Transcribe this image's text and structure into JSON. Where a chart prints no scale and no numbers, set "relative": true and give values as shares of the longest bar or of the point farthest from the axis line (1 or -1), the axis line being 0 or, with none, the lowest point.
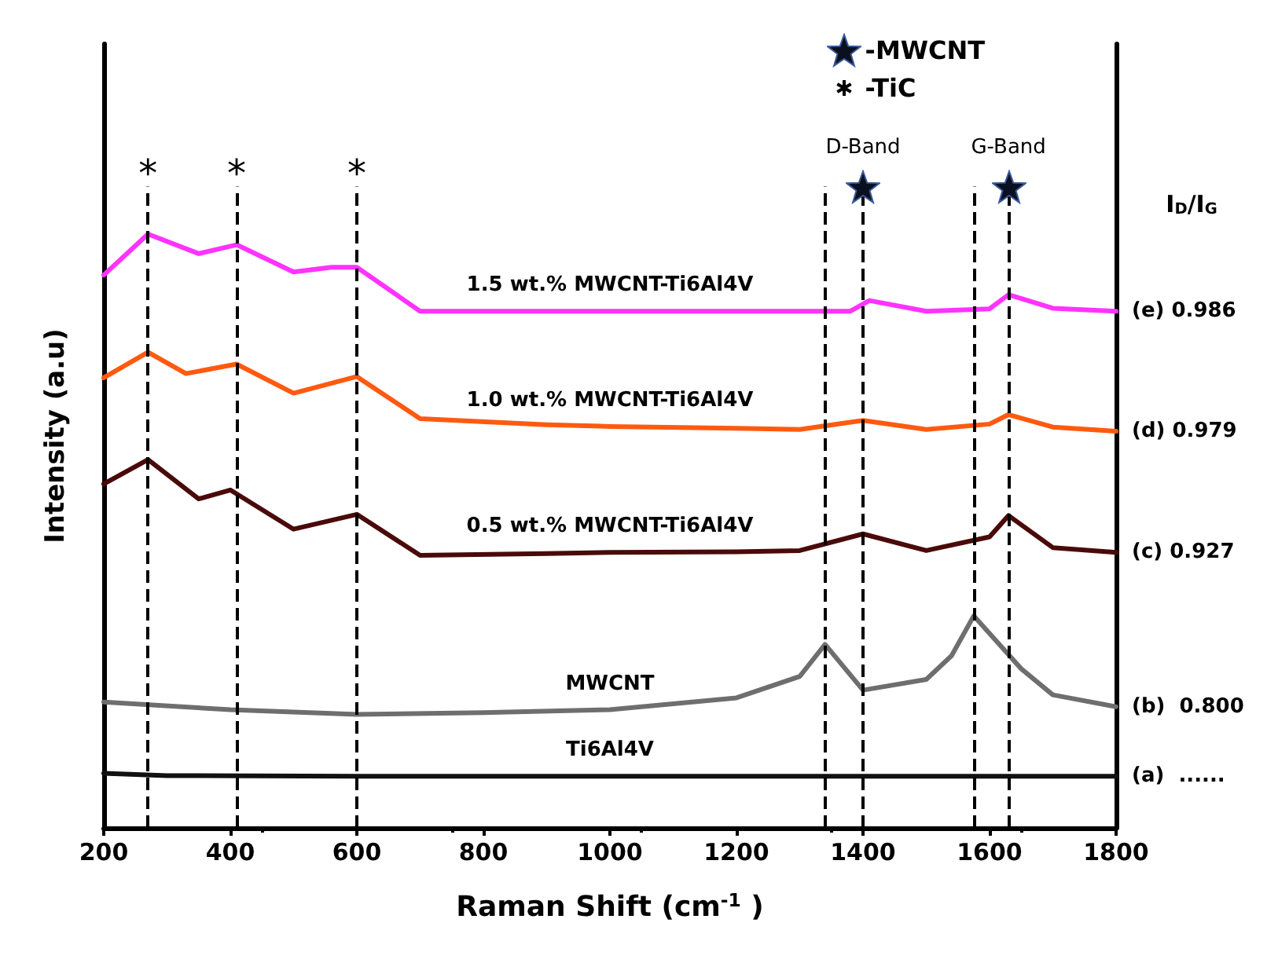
{
  "chart_data": {
    "type": "line",
    "relative": true,
    "xlabel": "Raman Shift (cm$^{-1}$ )",
    "ylabel": "Intensity (a.u)",
    "xlim": [
      200,
      1800
    ],
    "xticks": [
      200,
      400,
      600,
      800,
      1000,
      1200,
      1400,
      1600,
      1800
    ],
    "grid": false,
    "legend": false,
    "marker": "none",
    "line_style": "solid",
    "series": [
      {
        "name": "1.5 wt.% MWCNT-Ti6Al4V",
        "color": "#ff33ff",
        "x": [
          200,
          270,
          350,
          410,
          500,
          560,
          600,
          700,
          900,
          1000,
          1200,
          1380,
          1410,
          1500,
          1600,
          1630,
          1700,
          1800
        ],
        "values": [
          0.931,
          1.0,
          0.967,
          0.982,
          0.936,
          0.944,
          0.944,
          0.87,
          0.87,
          0.87,
          0.87,
          0.87,
          0.888,
          0.87,
          0.874,
          0.898,
          0.875,
          0.87
        ]
      },
      {
        "name": "1.0 wt.% MWCNT-Ti6Al4V",
        "color": "#ff5a10",
        "x": [
          200,
          270,
          330,
          410,
          500,
          600,
          700,
          900,
          1000,
          1200,
          1300,
          1400,
          1500,
          1600,
          1630,
          1700,
          1800
        ],
        "values": [
          0.758,
          0.801,
          0.765,
          0.781,
          0.732,
          0.76,
          0.689,
          0.679,
          0.676,
          0.673,
          0.671,
          0.686,
          0.671,
          0.68,
          0.696,
          0.675,
          0.668
        ]
      },
      {
        "name": "0.5 wt.% MWCNT-Ti6Al4V",
        "color": "#4a0a0a",
        "x": [
          200,
          270,
          350,
          400,
          500,
          600,
          700,
          900,
          1000,
          1200,
          1300,
          1400,
          1500,
          1600,
          1630,
          1700,
          1800
        ],
        "values": [
          0.579,
          0.62,
          0.554,
          0.569,
          0.503,
          0.528,
          0.459,
          0.462,
          0.464,
          0.465,
          0.467,
          0.495,
          0.467,
          0.49,
          0.526,
          0.472,
          0.464
        ]
      },
      {
        "name": "MWCNT",
        "color": "#6e6e6e",
        "x": [
          200,
          400,
          600,
          800,
          1000,
          1200,
          1300,
          1340,
          1400,
          1500,
          1540,
          1575,
          1650,
          1700,
          1800
        ],
        "values": [
          0.212,
          0.199,
          0.191,
          0.194,
          0.199,
          0.219,
          0.255,
          0.309,
          0.232,
          0.25,
          0.29,
          0.357,
          0.268,
          0.224,
          0.204
        ]
      },
      {
        "name": "Ti6Al4V",
        "color": "#111111",
        "x": [
          200,
          300,
          600,
          1000,
          1400,
          1800
        ],
        "values": [
          0.092,
          0.088,
          0.087,
          0.087,
          0.087,
          0.087
        ]
      }
    ],
    "ref_lines": [
      {
        "axis": "x",
        "value": 270,
        "label": "*",
        "color": "#000000",
        "line_style": "dashed"
      },
      {
        "axis": "x",
        "value": 410,
        "label": "*",
        "color": "#000000",
        "line_style": "dashed"
      },
      {
        "axis": "x",
        "value": 600,
        "label": "*",
        "color": "#000000",
        "line_style": "dashed"
      },
      {
        "axis": "x",
        "value": 1400,
        "label": "D-Band",
        "color": "#000000",
        "line_style": "dashed"
      },
      {
        "axis": "x",
        "value": 1630,
        "label": "G-Band",
        "color": "#000000",
        "line_style": "dashed"
      },
      {
        "axis": "x",
        "value": 1340,
        "color": "#000000",
        "line_style": "dashed"
      },
      {
        "axis": "x",
        "value": 1575,
        "color": "#000000",
        "line_style": "dashed"
      }
    ],
    "annotations": [
      "-MWCNT",
      "-TiC",
      "I$_{D}$/I$_{G}$",
      "(e) 0.986",
      "(d) 0.979",
      "(c) 0.927",
      "(b)  0.800",
      "(a)  ......"
    ]
  }
}
